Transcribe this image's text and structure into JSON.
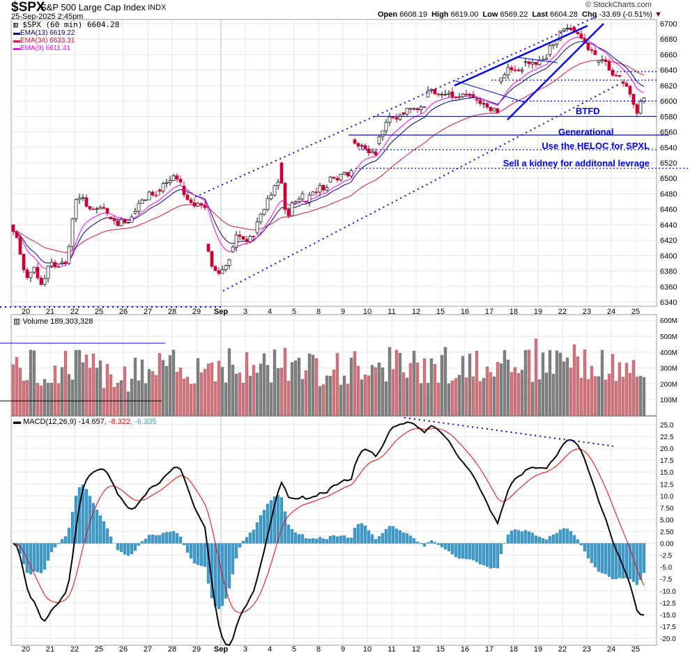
{
  "header": {
    "symbol": "$SPX",
    "name": "S&P 500 Large Cap Index",
    "exchange": "INDX",
    "datetime": "25-Sep-2025 2:45pm",
    "watermark": "© StockCharts.com",
    "open_label": "Open",
    "open": "6608.19",
    "high_label": "High",
    "high": "6619.00",
    "low_label": "Low",
    "low": "6569.22",
    "last_label": "Last",
    "last": "6604.28",
    "chg_label": "Chg",
    "chg": "-33.69 (-0.51%)"
  },
  "legend": {
    "price": "$SPX (60 min) 6604.28",
    "ema13": "EMA(13) 6619.22",
    "ema34": "EMA(34) 6633.31",
    "ema9": "EMA(9) 6611.41",
    "volume": "Volume 189,303,328",
    "macd_name": "MACD(12,26,9) -14.657",
    "macd_signal": ", -8.322",
    "macd_hist": ", -6.335"
  },
  "colors": {
    "up": "#ffffff",
    "down": "#cc0033",
    "ema13": "#000080",
    "ema34": "#dc143c",
    "ema9": "#ff00ff",
    "annot": "#0000ee",
    "vol_up": "#808080",
    "vol_down": "#d9707a",
    "hist": "#3d9ccc"
  },
  "annotations": {
    "btfd": "BTFD",
    "generational": "Generational",
    "heloc": "Use the HELOC for SPXL",
    "kidney": "Sell a kidney for additonal levrage"
  },
  "chart_data": {
    "type": "candlestick",
    "title": "$SPX S&P 500 Large Cap Index (60 min)",
    "price_ticks": [
      6700,
      6680,
      6660,
      6640,
      6620,
      6600,
      6580,
      6560,
      6540,
      6520,
      6500,
      6480,
      6460,
      6440,
      6420,
      6400,
      6380,
      6360,
      6340
    ],
    "price_ylim": [
      6340,
      6700
    ],
    "volume_ticks": [
      "600M",
      "500M",
      "400M",
      "300M",
      "200M",
      "100M"
    ],
    "macd_ticks": [
      "25.0",
      "22.5",
      "20.0",
      "17.5",
      "15.0",
      "12.5",
      "10.0",
      "7.50",
      "5.00",
      "2.50",
      "0.00",
      "-2.5",
      "-5.0",
      "-7.5",
      "-10.0",
      "-12.5",
      "-15.0",
      "-17.5",
      "-20.0"
    ],
    "macd_ylim": [
      -20,
      25
    ],
    "days": [
      "20",
      "21",
      "22",
      "25",
      "26",
      "27",
      "28",
      "29",
      "Sep",
      "3",
      "4",
      "5",
      "8",
      "9",
      "10",
      "11",
      "12",
      "15",
      "16",
      "17",
      "18",
      "19",
      "22",
      "23",
      "24",
      "25"
    ],
    "day_path": [
      [
        6440,
        6420,
        6370,
        6385
      ],
      [
        6385,
        6360,
        6395,
        6385
      ],
      [
        6390,
        6395,
        6470,
        6475
      ],
      [
        6475,
        6460,
        6465,
        6455
      ],
      [
        6450,
        6440,
        6445,
        6450
      ],
      [
        6455,
        6470,
        6480,
        6478
      ],
      [
        6485,
        6490,
        6500,
        6495
      ],
      [
        6490,
        6465,
        6470,
        6462
      ],
      [
        6415,
        6385,
        6375,
        6395
      ],
      [
        6405,
        6430,
        6420,
        6425
      ],
      [
        6430,
        6455,
        6480,
        6495
      ],
      [
        6520,
        6450,
        6470,
        6480
      ],
      [
        6470,
        6480,
        6490,
        6488
      ],
      [
        6495,
        6500,
        6505,
        6510
      ],
      [
        6550,
        6540,
        6535,
        6530
      ],
      [
        6545,
        6570,
        6580,
        6582
      ],
      [
        6585,
        6588,
        6590,
        6592
      ],
      [
        6605,
        6615,
        6612,
        6610
      ],
      [
        6612,
        6605,
        6607,
        6605
      ],
      [
        6602,
        6595,
        6590,
        6585
      ],
      [
        6625,
        6640,
        6645,
        6640
      ],
      [
        6650,
        6645,
        6650,
        6655
      ],
      [
        6660,
        6680,
        6690,
        6692
      ],
      [
        6695,
        6690,
        6670,
        6660
      ],
      [
        6650,
        6655,
        6630,
        6632
      ],
      [
        6625,
        6615,
        6585,
        6604
      ]
    ],
    "volume_daily_m": [
      300,
      260,
      320,
      280,
      250,
      270,
      300,
      320,
      330,
      290,
      310,
      340,
      300,
      290,
      330,
      320,
      300,
      330,
      280,
      340,
      380,
      350,
      360,
      330,
      300,
      260
    ],
    "hlines": [
      6580,
      6556,
      6537,
      6513,
      6600,
      6627,
      6638
    ]
  }
}
